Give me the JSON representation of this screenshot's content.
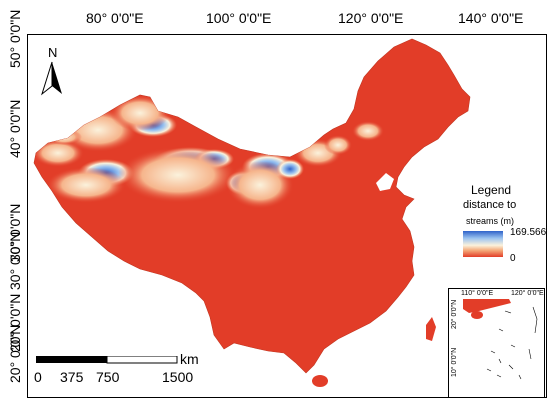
{
  "map": {
    "lon_labels": [
      "80° 0'0\"E",
      "100° 0'0\"E",
      "120° 0'0\"E",
      "140° 0'0\"E"
    ],
    "lat_labels": [
      "50° 0'0\"N",
      "40° 0'0\"N",
      "30° 0'0\"N",
      "20° 0'0\"N"
    ],
    "lat_labels_outer": [
      "20° 0'0\"N",
      "30° 0'0\"N"
    ],
    "north_label": "N",
    "colors": {
      "low": "#e23d28",
      "mid": "#fbf2dc",
      "high": "#2f62c9",
      "outline": "#1a1a1a"
    }
  },
  "legend": {
    "title": "Legend",
    "subtitle_line1": "distance to",
    "subtitle_line2": "streams (m)",
    "max_value": "169.566",
    "min_value": "0"
  },
  "inset": {
    "lon_labels": [
      "110° 0'0\"E",
      "120° 0'0\"E"
    ],
    "lat_labels": [
      "20° 0'0\"N",
      "10° 0'0\"N"
    ]
  },
  "scalebar": {
    "unit": "km",
    "labels": [
      "0",
      "375",
      "750",
      "1500"
    ]
  }
}
